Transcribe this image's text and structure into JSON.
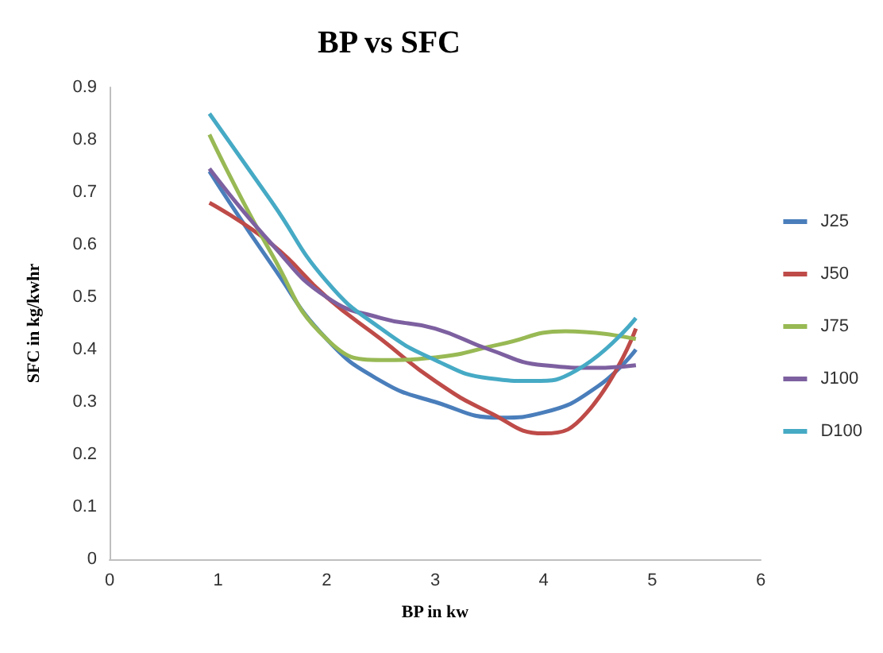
{
  "chart_data": {
    "type": "line",
    "title": "BP vs SFC",
    "xlabel": "BP in kw",
    "ylabel": "SFC in kg/kwhr",
    "xlim": [
      0,
      6
    ],
    "xticks": [
      0,
      1,
      2,
      3,
      4,
      5,
      6
    ],
    "ylim": [
      0,
      0.9
    ],
    "yticks": [
      0,
      0.1,
      0.2,
      0.3,
      0.4,
      0.5,
      0.6,
      0.7,
      0.8,
      0.9
    ],
    "grid": false,
    "legend": "right",
    "marker": "none",
    "series": [
      {
        "name": "J25",
        "color": "#4a7ebb",
        "x": [
          0.92,
          1.5,
          2,
          2.5,
          3,
          3.6,
          4,
          4.5,
          4.85
        ],
        "values": [
          0.74,
          0.56,
          0.42,
          0.34,
          0.3,
          0.27,
          0.28,
          0.33,
          0.4
        ]
      },
      {
        "name": "J50",
        "color": "#be4b48",
        "x": [
          0.92,
          1.5,
          2,
          2.5,
          3,
          3.5,
          4,
          4.4,
          4.85
        ],
        "values": [
          0.68,
          0.6,
          0.5,
          0.42,
          0.34,
          0.28,
          0.24,
          0.28,
          0.44
        ]
      },
      {
        "name": "J75",
        "color": "#98b954",
        "x": [
          0.92,
          1.5,
          2,
          2.5,
          3,
          3.6,
          4.2,
          4.85
        ],
        "values": [
          0.81,
          0.58,
          0.42,
          0.38,
          0.385,
          0.41,
          0.435,
          0.42
        ]
      },
      {
        "name": "J100",
        "color": "#7d60a0",
        "x": [
          0.92,
          1.5,
          2,
          2.5,
          3,
          3.5,
          4,
          4.5,
          4.85
        ],
        "values": [
          0.745,
          0.6,
          0.5,
          0.46,
          0.44,
          0.4,
          0.37,
          0.365,
          0.37
        ]
      },
      {
        "name": "D100",
        "color": "#46aac5",
        "x": [
          0.92,
          1.5,
          2,
          2.5,
          3,
          3.5,
          3.9,
          4.3,
          4.85
        ],
        "values": [
          0.85,
          0.68,
          0.53,
          0.44,
          0.38,
          0.345,
          0.34,
          0.36,
          0.46
        ]
      }
    ]
  }
}
